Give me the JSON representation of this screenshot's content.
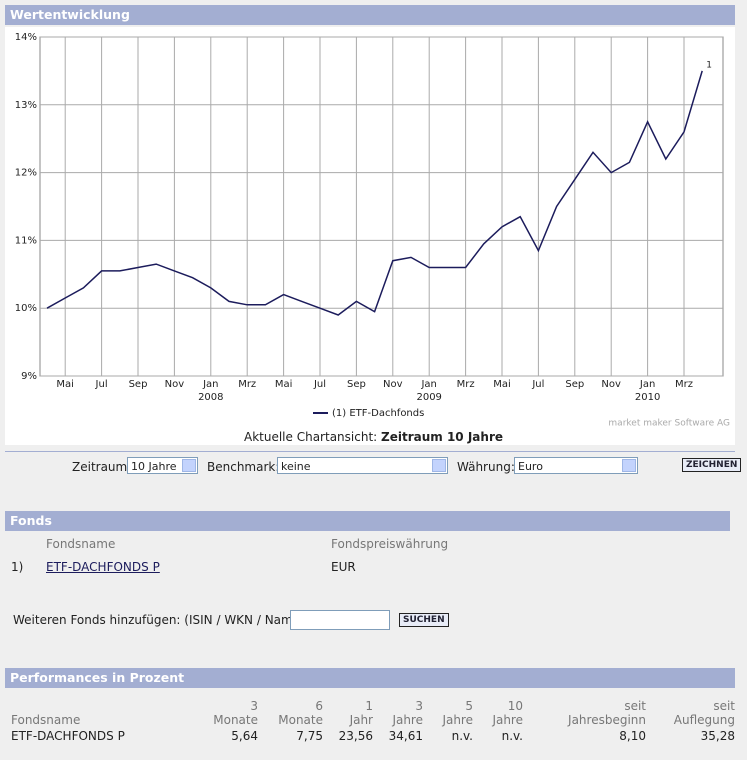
{
  "header": {
    "title": "Wertentwicklung"
  },
  "chart_data": {
    "type": "line",
    "x": [
      "2007-04",
      "2007-05",
      "2007-06",
      "2007-07",
      "2007-08",
      "2007-09",
      "2007-10",
      "2007-11",
      "2007-12",
      "2008-01",
      "2008-02",
      "2008-03",
      "2008-04",
      "2008-05",
      "2008-06",
      "2008-07",
      "2008-08",
      "2008-09",
      "2008-10",
      "2008-11",
      "2008-12",
      "2009-01",
      "2009-02",
      "2009-03",
      "2009-04",
      "2009-05",
      "2009-06",
      "2009-07",
      "2009-08",
      "2009-09",
      "2009-10",
      "2009-11",
      "2009-12",
      "2010-01",
      "2010-02",
      "2010-03",
      "2010-04"
    ],
    "series": [
      {
        "name": "(1)  ETF-Dachfonds",
        "color": "#1c1c5c",
        "end_label": "1",
        "values": [
          10.0,
          10.15,
          10.3,
          10.55,
          10.55,
          10.6,
          10.65,
          10.55,
          10.45,
          10.3,
          10.1,
          10.05,
          10.05,
          10.2,
          10.1,
          10.0,
          9.9,
          10.1,
          9.95,
          10.7,
          10.75,
          10.6,
          10.6,
          10.6,
          10.95,
          11.2,
          11.35,
          10.85,
          11.5,
          11.9,
          12.3,
          12.0,
          12.15,
          12.75,
          12.2,
          12.6,
          13.5
        ]
      }
    ],
    "ylim": [
      9,
      14
    ],
    "yticks": [
      {
        "value": 9,
        "label": "9%"
      },
      {
        "value": 10,
        "label": "10%"
      },
      {
        "value": 11,
        "label": "11%"
      },
      {
        "value": 12,
        "label": "12%"
      },
      {
        "value": 13,
        "label": "13%"
      },
      {
        "value": 14,
        "label": "14%"
      }
    ],
    "xticks": [
      {
        "value": "2007-05",
        "label": "Mai"
      },
      {
        "value": "2007-07",
        "label": "Jul"
      },
      {
        "value": "2007-09",
        "label": "Sep"
      },
      {
        "value": "2007-11",
        "label": "Nov"
      },
      {
        "value": "2008-01",
        "label": "Jan"
      },
      {
        "value": "2008-03",
        "label": "Mrz"
      },
      {
        "value": "2008-05",
        "label": "Mai"
      },
      {
        "value": "2008-07",
        "label": "Jul"
      },
      {
        "value": "2008-09",
        "label": "Sep"
      },
      {
        "value": "2008-11",
        "label": "Nov"
      },
      {
        "value": "2009-01",
        "label": "Jan"
      },
      {
        "value": "2009-03",
        "label": "Mrz"
      },
      {
        "value": "2009-05",
        "label": "Mai"
      },
      {
        "value": "2009-07",
        "label": "Jul"
      },
      {
        "value": "2009-09",
        "label": "Sep"
      },
      {
        "value": "2009-11",
        "label": "Nov"
      },
      {
        "value": "2010-01",
        "label": "Jan"
      },
      {
        "value": "2010-03",
        "label": "Mrz"
      }
    ],
    "year_labels": [
      {
        "value": "2008-01",
        "label": "2008"
      },
      {
        "value": "2009-01",
        "label": "2009"
      },
      {
        "value": "2010-01",
        "label": "2010"
      }
    ],
    "grid": true,
    "credit": "market maker Software AG"
  },
  "chart_view": {
    "label": "Aktuelle Chartansicht:",
    "value": "Zeitraum 10 Jahre"
  },
  "controls": {
    "zeitraum_label": "Zeitraum:",
    "zeitraum_value": "10 Jahre",
    "benchmark_label": "Benchmark:",
    "benchmark_value": "keine",
    "waehrung_label": "Währung:",
    "waehrung_value": "Euro",
    "draw_button": "ZEICHNEN"
  },
  "fonds": {
    "title": "Fonds",
    "headers": [
      "Fondsname",
      "Fondspreiswährung"
    ],
    "rows": [
      [
        "1)",
        "ETF-DACHFONDS P",
        "EUR"
      ]
    ],
    "add_label": "Weiteren Fonds hinzufügen: (ISIN / WKN / Name)",
    "search_button": "SUCHEN"
  },
  "performance": {
    "title": "Performances in Prozent",
    "headers": [
      [
        "",
        "Fondsname"
      ],
      [
        "3",
        "Monate"
      ],
      [
        "6",
        "Monate"
      ],
      [
        "1",
        "Jahr"
      ],
      [
        "3",
        "Jahre"
      ],
      [
        "5",
        "Jahre"
      ],
      [
        "10",
        "Jahre"
      ],
      [
        "seit",
        "Jahresbeginn"
      ],
      [
        "seit",
        "Auflegung"
      ]
    ],
    "rows": [
      [
        "ETF-DACHFONDS P",
        "5,64",
        "7,75",
        "23,56",
        "34,61",
        "n.v.",
        "n.v.",
        "8,10",
        "35,28"
      ]
    ]
  }
}
